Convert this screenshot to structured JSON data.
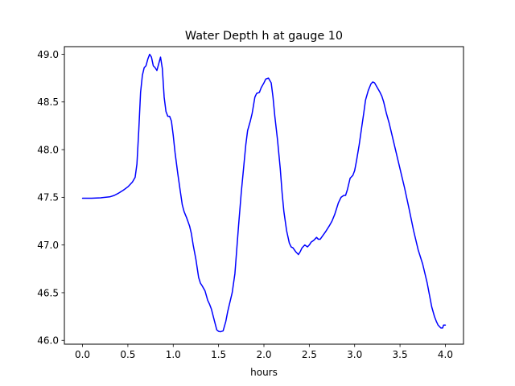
{
  "chart_data": {
    "type": "line",
    "title": "Water Depth h at gauge 10",
    "xlabel": "hours",
    "ylabel": "",
    "xlim": [
      -0.2,
      4.2
    ],
    "ylim": [
      45.96,
      49.08
    ],
    "xticks": [
      0.0,
      0.5,
      1.0,
      1.5,
      2.0,
      2.5,
      3.0,
      3.5,
      4.0
    ],
    "xtick_labels": [
      "0.0",
      "0.5",
      "1.0",
      "1.5",
      "2.0",
      "2.5",
      "3.0",
      "3.5",
      "4.0"
    ],
    "yticks": [
      46.0,
      46.5,
      47.0,
      47.5,
      48.0,
      48.5,
      49.0
    ],
    "ytick_labels": [
      "46.0",
      "46.5",
      "47.0",
      "47.5",
      "48.0",
      "48.5",
      "49.0"
    ],
    "grid": false,
    "series": [
      {
        "color": "#0000ff",
        "x": [
          0.0,
          0.1,
          0.2,
          0.3,
          0.35,
          0.4,
          0.45,
          0.5,
          0.55,
          0.58,
          0.6,
          0.62,
          0.64,
          0.66,
          0.68,
          0.7,
          0.72,
          0.74,
          0.76,
          0.78,
          0.8,
          0.82,
          0.84,
          0.86,
          0.88,
          0.9,
          0.92,
          0.94,
          0.96,
          0.98,
          1.0,
          1.02,
          1.05,
          1.08,
          1.1,
          1.12,
          1.15,
          1.18,
          1.2,
          1.22,
          1.25,
          1.28,
          1.3,
          1.32,
          1.35,
          1.38,
          1.4,
          1.42,
          1.45,
          1.48,
          1.5,
          1.52,
          1.55,
          1.58,
          1.6,
          1.62,
          1.65,
          1.68,
          1.7,
          1.72,
          1.75,
          1.78,
          1.8,
          1.82,
          1.85,
          1.87,
          1.9,
          1.92,
          1.95,
          1.97,
          2.0,
          2.02,
          2.05,
          2.08,
          2.1,
          2.12,
          2.15,
          2.18,
          2.2,
          2.22,
          2.25,
          2.28,
          2.3,
          2.32,
          2.35,
          2.38,
          2.4,
          2.42,
          2.45,
          2.48,
          2.5,
          2.52,
          2.55,
          2.58,
          2.6,
          2.62,
          2.65,
          2.68,
          2.7,
          2.72,
          2.75,
          2.78,
          2.8,
          2.82,
          2.85,
          2.88,
          2.9,
          2.92,
          2.95,
          2.98,
          3.0,
          3.02,
          3.05,
          3.08,
          3.1,
          3.12,
          3.15,
          3.18,
          3.2,
          3.22,
          3.25,
          3.28,
          3.3,
          3.32,
          3.35,
          3.38,
          3.4,
          3.45,
          3.5,
          3.55,
          3.6,
          3.65,
          3.7,
          3.75,
          3.8,
          3.82,
          3.85,
          3.88,
          3.9,
          3.92,
          3.95,
          3.97,
          3.98,
          4.0
        ],
        "y": [
          47.49,
          47.49,
          47.495,
          47.505,
          47.52,
          47.545,
          47.575,
          47.61,
          47.66,
          47.71,
          47.85,
          48.2,
          48.6,
          48.78,
          48.86,
          48.88,
          48.95,
          49.0,
          48.97,
          48.88,
          48.86,
          48.83,
          48.9,
          48.97,
          48.85,
          48.55,
          48.4,
          48.35,
          48.35,
          48.3,
          48.15,
          47.97,
          47.75,
          47.55,
          47.42,
          47.35,
          47.28,
          47.2,
          47.12,
          47.0,
          46.85,
          46.66,
          46.6,
          46.57,
          46.52,
          46.42,
          46.38,
          46.33,
          46.22,
          46.11,
          46.095,
          46.09,
          46.1,
          46.2,
          46.3,
          46.38,
          46.5,
          46.7,
          46.95,
          47.2,
          47.55,
          47.85,
          48.05,
          48.2,
          48.3,
          48.38,
          48.55,
          48.59,
          48.6,
          48.65,
          48.7,
          48.74,
          48.75,
          48.7,
          48.55,
          48.35,
          48.1,
          47.8,
          47.55,
          47.35,
          47.15,
          47.02,
          46.98,
          46.97,
          46.93,
          46.9,
          46.93,
          46.97,
          47.0,
          46.98,
          47.0,
          47.03,
          47.05,
          47.08,
          47.06,
          47.06,
          47.1,
          47.14,
          47.17,
          47.2,
          47.25,
          47.32,
          47.38,
          47.44,
          47.5,
          47.52,
          47.52,
          47.58,
          47.7,
          47.73,
          47.78,
          47.88,
          48.05,
          48.25,
          48.38,
          48.52,
          48.62,
          48.69,
          48.71,
          48.7,
          48.65,
          48.6,
          48.56,
          48.5,
          48.38,
          48.28,
          48.2,
          48.0,
          47.8,
          47.6,
          47.38,
          47.15,
          46.95,
          46.8,
          46.6,
          46.5,
          46.35,
          46.25,
          46.2,
          46.16,
          46.13,
          46.13,
          46.16,
          46.16
        ]
      }
    ]
  }
}
